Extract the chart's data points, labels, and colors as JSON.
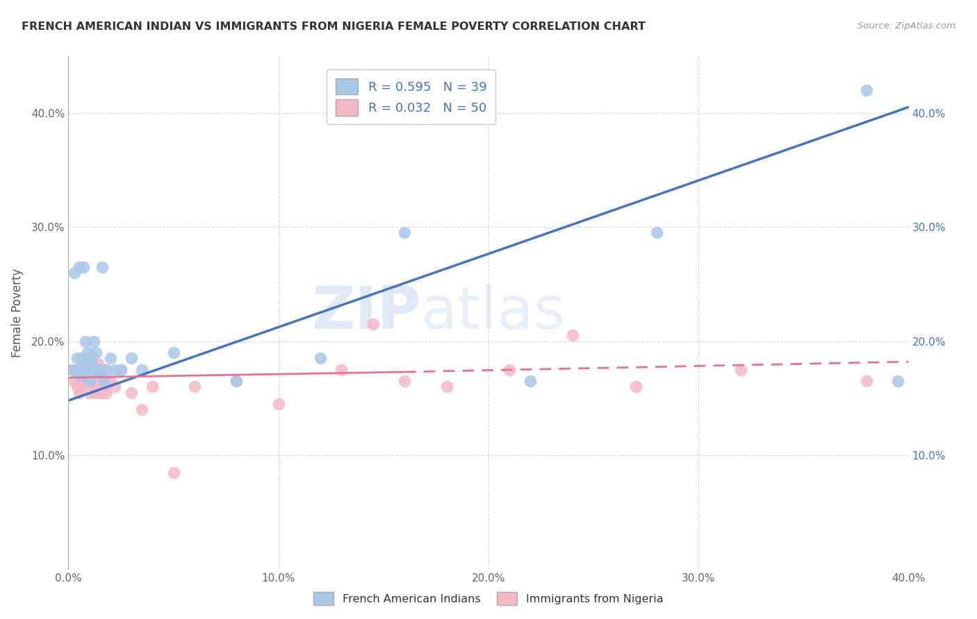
{
  "title": "FRENCH AMERICAN INDIAN VS IMMIGRANTS FROM NIGERIA FEMALE POVERTY CORRELATION CHART",
  "source": "Source: ZipAtlas.com",
  "xlabel": "",
  "ylabel": "Female Poverty",
  "xlim": [
    0.0,
    0.4
  ],
  "ylim": [
    0.0,
    0.45
  ],
  "xticks": [
    0.0,
    0.1,
    0.2,
    0.3,
    0.4
  ],
  "yticks": [
    0.1,
    0.2,
    0.3,
    0.4
  ],
  "xticklabels": [
    "0.0%",
    "10.0%",
    "20.0%",
    "30.0%",
    "40.0%"
  ],
  "left_yticklabels": [
    "10.0%",
    "20.0%",
    "30.0%",
    "40.0%"
  ],
  "right_yticklabels": [
    "10.0%",
    "20.0%",
    "30.0%",
    "40.0%"
  ],
  "series1_label": "French American Indians",
  "series2_label": "Immigrants from Nigeria",
  "series1_R": "R = 0.595",
  "series1_N": "N = 39",
  "series2_R": "R = 0.032",
  "series2_N": "N = 50",
  "series1_color": "#a8c8e8",
  "series2_color": "#f4b8c8",
  "series1_line_color": "#4472c4",
  "series2_line_color": "#e87090",
  "background_color": "#ffffff",
  "grid_color": "#d0d0d0",
  "watermark_zip": "ZIP",
  "watermark_atlas": "atlas",
  "series1_x": [
    0.002,
    0.003,
    0.004,
    0.004,
    0.005,
    0.005,
    0.006,
    0.006,
    0.007,
    0.007,
    0.008,
    0.008,
    0.009,
    0.009,
    0.01,
    0.01,
    0.011,
    0.011,
    0.012,
    0.012,
    0.013,
    0.014,
    0.015,
    0.016,
    0.017,
    0.018,
    0.02,
    0.022,
    0.025,
    0.03,
    0.035,
    0.05,
    0.08,
    0.12,
    0.16,
    0.22,
    0.28,
    0.38,
    0.395
  ],
  "series1_y": [
    0.175,
    0.26,
    0.175,
    0.185,
    0.17,
    0.265,
    0.185,
    0.175,
    0.265,
    0.175,
    0.2,
    0.185,
    0.175,
    0.19,
    0.175,
    0.165,
    0.18,
    0.185,
    0.2,
    0.175,
    0.19,
    0.175,
    0.175,
    0.265,
    0.165,
    0.175,
    0.185,
    0.175,
    0.175,
    0.185,
    0.175,
    0.19,
    0.165,
    0.185,
    0.295,
    0.165,
    0.295,
    0.42,
    0.165
  ],
  "series2_x": [
    0.002,
    0.003,
    0.004,
    0.005,
    0.005,
    0.006,
    0.006,
    0.007,
    0.007,
    0.008,
    0.008,
    0.009,
    0.009,
    0.01,
    0.01,
    0.011,
    0.011,
    0.012,
    0.012,
    0.013,
    0.013,
    0.014,
    0.014,
    0.015,
    0.015,
    0.016,
    0.016,
    0.017,
    0.017,
    0.018,
    0.018,
    0.02,
    0.022,
    0.025,
    0.03,
    0.035,
    0.04,
    0.05,
    0.06,
    0.08,
    0.1,
    0.13,
    0.145,
    0.16,
    0.18,
    0.21,
    0.24,
    0.27,
    0.32,
    0.38
  ],
  "series2_y": [
    0.175,
    0.165,
    0.16,
    0.155,
    0.175,
    0.165,
    0.17,
    0.16,
    0.175,
    0.165,
    0.165,
    0.175,
    0.16,
    0.155,
    0.16,
    0.17,
    0.165,
    0.16,
    0.175,
    0.165,
    0.155,
    0.165,
    0.18,
    0.17,
    0.155,
    0.155,
    0.175,
    0.16,
    0.175,
    0.16,
    0.155,
    0.165,
    0.16,
    0.175,
    0.155,
    0.14,
    0.16,
    0.085,
    0.16,
    0.165,
    0.145,
    0.175,
    0.215,
    0.165,
    0.16,
    0.175,
    0.205,
    0.16,
    0.175,
    0.165
  ],
  "line1_x_start": 0.0,
  "line1_x_end": 0.4,
  "line1_y_start": 0.148,
  "line1_y_end": 0.405,
  "line2_x_start": 0.0,
  "line2_x_end": 0.4,
  "line2_y_start": 0.168,
  "line2_y_end": 0.182
}
